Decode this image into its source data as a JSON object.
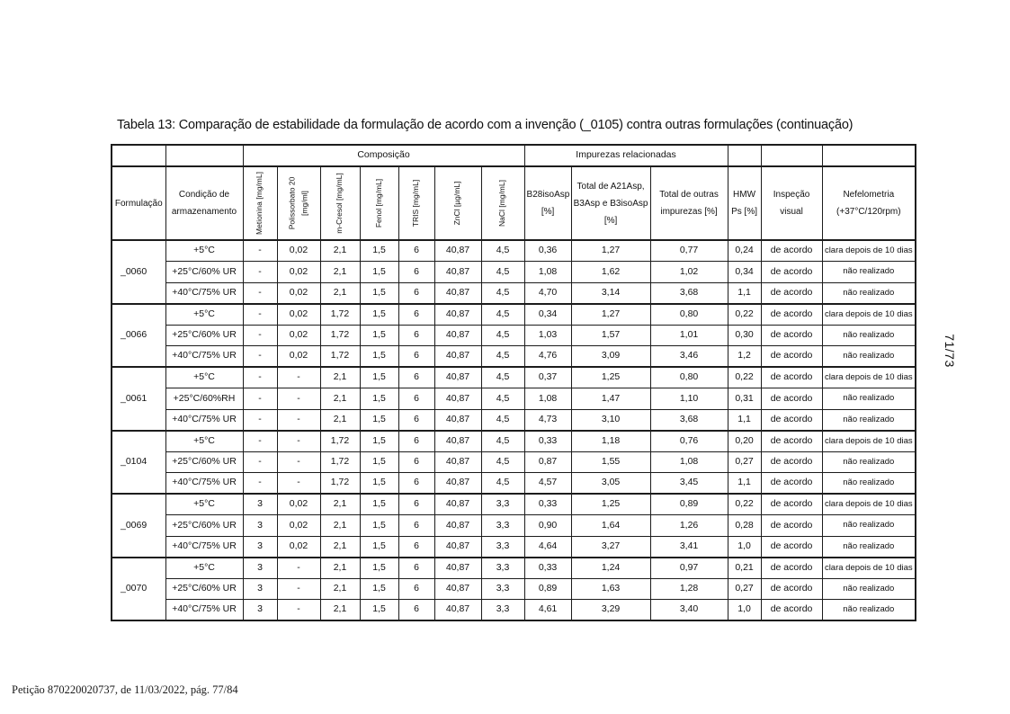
{
  "document": {
    "title": "Tabela 13: Comparação de estabilidade da formulação de acordo com a invenção (_0105) contra outras formulações (continuação)",
    "side_page_number": "71/73",
    "footer": "Petição 870220020737, de 11/03/2022, pág. 77/84"
  },
  "table": {
    "group_header": {
      "composition": "Composição",
      "impurities": "Impurezas relacionadas"
    },
    "columns": {
      "formulation": "Formulação",
      "storage_condition": "Condição de armazenamento",
      "rotated": [
        "Metionina [mg/mL]",
        "Polissorbato 20 [mg/ml]",
        "m-Cresol [mg/mL]",
        "Fenol [mg/mL]",
        "TRIS [mg/mL]",
        "ZnCl [µg/mL]",
        "NaCl [mg/mL]"
      ],
      "impurity_cols": [
        "B28isoAsp [%]",
        "Total de A21Asp, B3Asp e B3isoAsp [%]",
        "Total de outras impurezas [%]",
        "HMW Ps [%]"
      ],
      "visual_inspection": "Inspeção visual",
      "nephelometry": "Nefelometria (+37°C/120rpm)"
    },
    "groups": [
      {
        "formulation": "_0060",
        "rows": [
          [
            "+5°C",
            "-",
            "0,02",
            "2,1",
            "1,5",
            "6",
            "40,87",
            "4,5",
            "0,36",
            "1,27",
            "0,77",
            "0,24",
            "de acordo",
            "clara depois de 10 dias"
          ],
          [
            "+25°C/60% UR",
            "-",
            "0,02",
            "2,1",
            "1,5",
            "6",
            "40,87",
            "4,5",
            "1,08",
            "1,62",
            "1,02",
            "0,34",
            "de acordo",
            "não realizado"
          ],
          [
            "+40°C/75% UR",
            "-",
            "0,02",
            "2,1",
            "1,5",
            "6",
            "40,87",
            "4,5",
            "4,70",
            "3,14",
            "3,68",
            "1,1",
            "de acordo",
            "não realizado"
          ]
        ]
      },
      {
        "formulation": "_0066",
        "rows": [
          [
            "+5°C",
            "-",
            "0,02",
            "1,72",
            "1,5",
            "6",
            "40,87",
            "4,5",
            "0,34",
            "1,27",
            "0,80",
            "0,22",
            "de acordo",
            "clara depois de 10 dias"
          ],
          [
            "+25°C/60% UR",
            "-",
            "0,02",
            "1,72",
            "1,5",
            "6",
            "40,87",
            "4,5",
            "1,03",
            "1,57",
            "1,01",
            "0,30",
            "de acordo",
            "não realizado"
          ],
          [
            "+40°C/75% UR",
            "-",
            "0,02",
            "1,72",
            "1,5",
            "6",
            "40,87",
            "4,5",
            "4,76",
            "3,09",
            "3,46",
            "1,2",
            "de acordo",
            "não realizado"
          ]
        ]
      },
      {
        "formulation": "_0061",
        "rows": [
          [
            "+5°C",
            "-",
            "-",
            "2,1",
            "1,5",
            "6",
            "40,87",
            "4,5",
            "0,37",
            "1,25",
            "0,80",
            "0,22",
            "de acordo",
            "clara depois de 10 dias"
          ],
          [
            "+25°C/60%RH",
            "-",
            "-",
            "2,1",
            "1,5",
            "6",
            "40,87",
            "4,5",
            "1,08",
            "1,47",
            "1,10",
            "0,31",
            "de acordo",
            "não realizado"
          ],
          [
            "+40°C/75% UR",
            "-",
            "-",
            "2,1",
            "1,5",
            "6",
            "40,87",
            "4,5",
            "4,73",
            "3,10",
            "3,68",
            "1,1",
            "de acordo",
            "não realizado"
          ]
        ]
      },
      {
        "formulation": "_0104",
        "rows": [
          [
            "+5°C",
            "-",
            "-",
            "1,72",
            "1,5",
            "6",
            "40,87",
            "4,5",
            "0,33",
            "1,18",
            "0,76",
            "0,20",
            "de acordo",
            "clara depois de 10 dias"
          ],
          [
            "+25°C/60% UR",
            "-",
            "-",
            "1,72",
            "1,5",
            "6",
            "40,87",
            "4,5",
            "0,87",
            "1,55",
            "1,08",
            "0,27",
            "de acordo",
            "não realizado"
          ],
          [
            "+40°C/75% UR",
            "-",
            "-",
            "1,72",
            "1,5",
            "6",
            "40,87",
            "4,5",
            "4,57",
            "3,05",
            "3,45",
            "1,1",
            "de acordo",
            "não realizado"
          ]
        ]
      },
      {
        "formulation": "_0069",
        "rows": [
          [
            "+5°C",
            "3",
            "0,02",
            "2,1",
            "1,5",
            "6",
            "40,87",
            "3,3",
            "0,33",
            "1,25",
            "0,89",
            "0,22",
            "de acordo",
            "clara depois de 10 dias"
          ],
          [
            "+25°C/60% UR",
            "3",
            "0,02",
            "2,1",
            "1,5",
            "6",
            "40,87",
            "3,3",
            "0,90",
            "1,64",
            "1,26",
            "0,28",
            "de acordo",
            "não realizado"
          ],
          [
            "+40°C/75% UR",
            "3",
            "0,02",
            "2,1",
            "1,5",
            "6",
            "40,87",
            "3,3",
            "4,64",
            "3,27",
            "3,41",
            "1,0",
            "de acordo",
            "não realizado"
          ]
        ]
      },
      {
        "formulation": "_0070",
        "rows": [
          [
            "+5°C",
            "3",
            "-",
            "2,1",
            "1,5",
            "6",
            "40,87",
            "3,3",
            "0,33",
            "1,24",
            "0,97",
            "0,21",
            "de acordo",
            "clara depois de 10 dias"
          ],
          [
            "+25°C/60% UR",
            "3",
            "-",
            "2,1",
            "1,5",
            "6",
            "40,87",
            "3,3",
            "0,89",
            "1,63",
            "1,28",
            "0,27",
            "de acordo",
            "não realizado"
          ],
          [
            "+40°C/75% UR",
            "3",
            "-",
            "2,1",
            "1,5",
            "6",
            "40,87",
            "3,3",
            "4,61",
            "3,29",
            "3,40",
            "1,0",
            "de acordo",
            "não realizado"
          ]
        ]
      }
    ]
  }
}
